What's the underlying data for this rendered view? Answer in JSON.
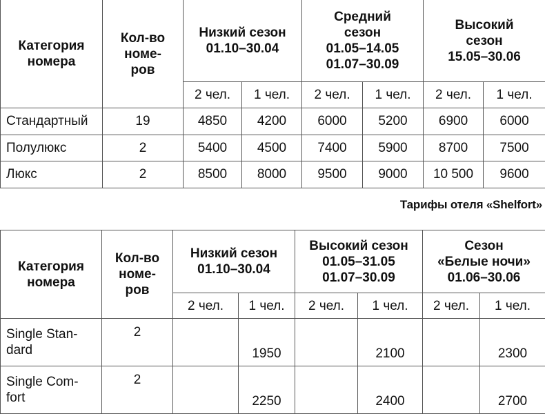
{
  "table1": {
    "headers": {
      "category": "Категория номера",
      "count": "Кол-во номе-ров",
      "season1": [
        "Низкий сезон",
        "01.10–30.04"
      ],
      "season2": [
        "Средний",
        "сезон",
        "01.05–14.05",
        "01.07–30.09"
      ],
      "season3": [
        "Высокий",
        "сезон",
        "15.05–30.06"
      ],
      "sub": [
        "2 чел.",
        "1 чел.",
        "2 чел.",
        "1 чел.",
        "2 чел.",
        "1 чел."
      ]
    },
    "rows": [
      [
        "Стандартный",
        "19",
        "4850",
        "4200",
        "6000",
        "5200",
        "6900",
        "6000"
      ],
      [
        "Полулюкс",
        "2",
        "5400",
        "4500",
        "7400",
        "5900",
        "8700",
        "7500"
      ],
      [
        "Люкс",
        "2",
        "8500",
        "8000",
        "9500",
        "9000",
        "10 500",
        "9600"
      ]
    ]
  },
  "caption": "Тарифы отеля «Shelfort»",
  "table2": {
    "headers": {
      "category": "Категория номера",
      "count": "Кол-во номе-ров",
      "season1": [
        "Низкий сезон",
        "01.10–30.04"
      ],
      "season2": [
        "Высокий сезон",
        "01.05–31.05",
        "01.07–30.09"
      ],
      "season3": [
        "Сезон",
        "«Белые ночи»",
        "01.06–30.06"
      ],
      "sub": [
        "2 чел.",
        "1 чел.",
        "2 чел.",
        "1 чел.",
        "2 чел.",
        "1 чел."
      ]
    },
    "rows": [
      [
        "Single Stan-dard",
        "2",
        "",
        "1950",
        "",
        "2100",
        "",
        "2300"
      ],
      [
        "Single Com-fort",
        "2",
        "",
        "2250",
        "",
        "2400",
        "",
        "2700"
      ]
    ]
  }
}
